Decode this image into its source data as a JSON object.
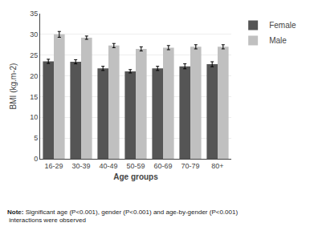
{
  "chart_data": {
    "type": "bar",
    "categories": [
      "16-29",
      "30-39",
      "40-49",
      "50-59",
      "60-69",
      "70-79",
      "80+"
    ],
    "series": [
      {
        "name": "Female",
        "color": "#555555",
        "values": [
          23.5,
          23.4,
          21.8,
          21.1,
          21.8,
          22.3,
          22.8
        ],
        "errors": [
          0.5,
          0.5,
          0.5,
          0.4,
          0.5,
          0.6,
          0.6
        ]
      },
      {
        "name": "Male",
        "color": "#c0c0c0",
        "values": [
          30.0,
          29.2,
          27.3,
          26.5,
          26.8,
          27.0,
          27.0
        ],
        "errors": [
          0.7,
          0.4,
          0.5,
          0.5,
          0.5,
          0.5,
          0.5
        ]
      }
    ],
    "xlabel": "Age groups",
    "ylabel": "BMI (kg.m-2)",
    "ylim": [
      0,
      35
    ],
    "yticks": [
      0,
      5,
      10,
      15,
      20,
      25,
      30,
      35
    ],
    "grid": true,
    "legend": "right",
    "annotations": [
      "Note:",
      "Significant age (P<0.001), gender (P<0.001) and age-by-gender (P<0.001)\n interactions were observed"
    ]
  }
}
